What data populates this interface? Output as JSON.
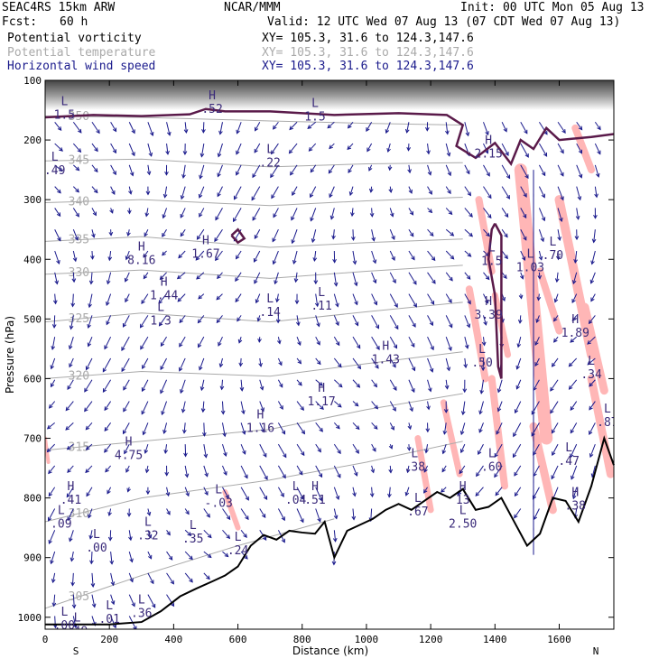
{
  "header": {
    "model": "SEAC4RS 15km ARW",
    "org": "NCAR/MMM",
    "init": "Init: 00 UTC Mon 05 Aug 13",
    "fcst_label": "Fcst:",
    "fcst_value": "60 h",
    "valid": "Valid: 12 UTC Wed 07 Aug 13 (07 CDT Wed 07 Aug 13)",
    "fields": [
      {
        "name": "Potential vorticity",
        "xy": "XY= 105.3, 31.6 to 124.3,147.6",
        "color": "#000000"
      },
      {
        "name": "Potential temperature",
        "xy": "XY= 105.3, 31.6 to 124.3,147.6",
        "color": "#aaaaaa"
      },
      {
        "name": "Horizontal wind speed",
        "xy": "XY= 105.3, 31.6 to 124.3,147.6",
        "color": "#1a1a8c"
      }
    ]
  },
  "chart_data": {
    "type": "cross-section",
    "xlabel": "Distance (km)",
    "ylabel": "Pressure (hPa)",
    "xlim": [
      0,
      1770
    ],
    "ylim": [
      1020,
      100
    ],
    "x_ticks": [
      0,
      200,
      400,
      600,
      800,
      1000,
      1200,
      1400,
      1600
    ],
    "y_ticks": [
      100,
      200,
      300,
      400,
      500,
      600,
      700,
      800,
      900,
      1000
    ],
    "x_end_labels": [
      "S",
      "N"
    ],
    "terrain": [
      [
        0,
        1012
      ],
      [
        100,
        1012
      ],
      [
        200,
        1012
      ],
      [
        300,
        1008
      ],
      [
        360,
        990
      ],
      [
        420,
        965
      ],
      [
        470,
        952
      ],
      [
        520,
        940
      ],
      [
        560,
        930
      ],
      [
        600,
        915
      ],
      [
        640,
        880
      ],
      [
        680,
        862
      ],
      [
        720,
        870
      ],
      [
        760,
        855
      ],
      [
        800,
        858
      ],
      [
        840,
        860
      ],
      [
        870,
        840
      ],
      [
        900,
        900
      ],
      [
        940,
        855
      ],
      [
        980,
        845
      ],
      [
        1020,
        835
      ],
      [
        1060,
        820
      ],
      [
        1100,
        810
      ],
      [
        1140,
        820
      ],
      [
        1180,
        805
      ],
      [
        1220,
        790
      ],
      [
        1260,
        800
      ],
      [
        1300,
        785
      ],
      [
        1340,
        820
      ],
      [
        1380,
        815
      ],
      [
        1420,
        800
      ],
      [
        1460,
        840
      ],
      [
        1500,
        880
      ],
      [
        1540,
        860
      ],
      [
        1580,
        800
      ],
      [
        1620,
        805
      ],
      [
        1660,
        840
      ],
      [
        1700,
        780
      ],
      [
        1740,
        700
      ],
      [
        1770,
        745
      ]
    ],
    "isentropes": [
      {
        "label": "350",
        "points": [
          [
            0,
            160
          ],
          [
            300,
            162
          ],
          [
            700,
            168
          ],
          [
            1000,
            172
          ],
          [
            1300,
            175
          ]
        ]
      },
      {
        "label": "345",
        "points": [
          [
            0,
            235
          ],
          [
            300,
            232
          ],
          [
            700,
            245
          ],
          [
            1000,
            240
          ],
          [
            1300,
            238
          ]
        ]
      },
      {
        "label": "340",
        "points": [
          [
            0,
            305
          ],
          [
            300,
            300
          ],
          [
            700,
            310
          ],
          [
            1000,
            302
          ],
          [
            1300,
            296
          ]
        ]
      },
      {
        "label": "335",
        "points": [
          [
            0,
            370
          ],
          [
            300,
            362
          ],
          [
            700,
            380
          ],
          [
            1000,
            372
          ],
          [
            1300,
            366
          ]
        ]
      },
      {
        "label": "330",
        "points": [
          [
            0,
            425
          ],
          [
            300,
            418
          ],
          [
            700,
            432
          ],
          [
            1000,
            420
          ],
          [
            1300,
            410
          ]
        ]
      },
      {
        "label": "325",
        "points": [
          [
            0,
            505
          ],
          [
            300,
            490
          ],
          [
            700,
            505
          ],
          [
            1000,
            488
          ],
          [
            1300,
            472
          ]
        ]
      },
      {
        "label": "320",
        "points": [
          [
            0,
            600
          ],
          [
            300,
            588
          ],
          [
            700,
            596
          ],
          [
            1000,
            575
          ],
          [
            1300,
            555
          ]
        ]
      },
      {
        "label": "315",
        "points": [
          [
            0,
            720
          ],
          [
            300,
            705
          ],
          [
            700,
            685
          ],
          [
            1000,
            652
          ],
          [
            1300,
            625
          ]
        ]
      },
      {
        "label": "310",
        "points": [
          [
            0,
            840
          ],
          [
            300,
            800
          ],
          [
            700,
            770
          ],
          [
            1000,
            740
          ],
          [
            1300,
            705
          ]
        ]
      },
      {
        "label": "305",
        "points": [
          [
            0,
            985
          ],
          [
            300,
            930
          ],
          [
            600,
            880
          ],
          [
            900,
            835
          ]
        ]
      }
    ],
    "pv_annotations": [
      {
        "kind": "L",
        "x": 30,
        "p": 238,
        "value": ".49"
      },
      {
        "kind": "H",
        "x": 300,
        "p": 388,
        "value": "8.16"
      },
      {
        "kind": "H",
        "x": 370,
        "p": 447,
        "value": "1.44"
      },
      {
        "kind": "L",
        "x": 360,
        "p": 490,
        "value": "1.3"
      },
      {
        "kind": "H",
        "x": 500,
        "p": 378,
        "value": "1.67"
      },
      {
        "kind": "L",
        "x": 700,
        "p": 225,
        "value": ".22"
      },
      {
        "kind": "L",
        "x": 700,
        "p": 475,
        "value": ".14"
      },
      {
        "kind": "L",
        "x": 860,
        "p": 465,
        "value": ".11"
      },
      {
        "kind": "H",
        "x": 1060,
        "p": 555,
        "value": "1.43"
      },
      {
        "kind": "H",
        "x": 860,
        "p": 625,
        "value": "1.17"
      },
      {
        "kind": "H",
        "x": 670,
        "p": 670,
        "value": "1.16"
      },
      {
        "kind": "H",
        "x": 260,
        "p": 715,
        "value": "4.75"
      },
      {
        "kind": "H",
        "x": 80,
        "p": 790,
        "value": ".41"
      },
      {
        "kind": "L",
        "x": 50,
        "p": 830,
        "value": ".09"
      },
      {
        "kind": "L",
        "x": 160,
        "p": 870,
        "value": ".00"
      },
      {
        "kind": "L",
        "x": 320,
        "p": 850,
        "value": ".32"
      },
      {
        "kind": "L",
        "x": 460,
        "p": 855,
        "value": ".35"
      },
      {
        "kind": "L",
        "x": 600,
        "p": 875,
        "value": ".24"
      },
      {
        "kind": "L",
        "x": 540,
        "p": 795,
        "value": "-.03"
      },
      {
        "kind": "L",
        "x": 780,
        "p": 790,
        "value": ".04"
      },
      {
        "kind": "H",
        "x": 840,
        "p": 790,
        "value": ".51"
      },
      {
        "kind": "L",
        "x": 1150,
        "p": 735,
        "value": ".38"
      },
      {
        "kind": "L",
        "x": 1160,
        "p": 810,
        "value": ".67"
      },
      {
        "kind": "H",
        "x": 1300,
        "p": 790,
        "value": "13"
      },
      {
        "kind": "L",
        "x": 1300,
        "p": 830,
        "value": "2.50"
      },
      {
        "kind": "L",
        "x": 1390,
        "p": 735,
        "value": ".60"
      },
      {
        "kind": "L",
        "x": 1360,
        "p": 560,
        "value": ".50"
      },
      {
        "kind": "L",
        "x": 1390,
        "p": 390,
        "value": "1.5"
      },
      {
        "kind": "H",
        "x": 1380,
        "p": 480,
        "value": "3.39"
      },
      {
        "kind": "L",
        "x": 1510,
        "p": 400,
        "value": "1.03"
      },
      {
        "kind": "L",
        "x": 1580,
        "p": 380,
        "value": ".70"
      },
      {
        "kind": "H",
        "x": 1650,
        "p": 510,
        "value": "1.89"
      },
      {
        "kind": "L",
        "x": 1700,
        "p": 580,
        "value": ".34"
      },
      {
        "kind": "L",
        "x": 1630,
        "p": 725,
        "value": ".47"
      },
      {
        "kind": "H",
        "x": 1650,
        "p": 800,
        "value": ".38"
      },
      {
        "kind": "H",
        "x": 1380,
        "p": 210,
        "value": "2.15"
      },
      {
        "kind": "L",
        "x": 100,
        "p": 1010,
        "value": ".49"
      },
      {
        "kind": "L",
        "x": 200,
        "p": 990,
        "value": ".01"
      },
      {
        "kind": "L",
        "x": 300,
        "p": 980,
        "value": ".36"
      },
      {
        "kind": "L",
        "x": 60,
        "p": 1000,
        "value": ".00"
      },
      {
        "kind": "H",
        "x": 520,
        "p": 135,
        "value": ".52"
      },
      {
        "kind": "L",
        "x": 60,
        "p": 145,
        "value": "1.5"
      },
      {
        "kind": "L",
        "x": 840,
        "p": 148,
        "value": "1.5"
      },
      {
        "kind": "L",
        "x": 1750,
        "p": 660,
        "value": ".87"
      }
    ],
    "colors": {
      "terrain": "#000000",
      "isentrope": "#aaaaaa",
      "pv_contour": "#5a1a4a",
      "wind": "#1a1a8c",
      "shading": "#ffb6b6"
    }
  }
}
